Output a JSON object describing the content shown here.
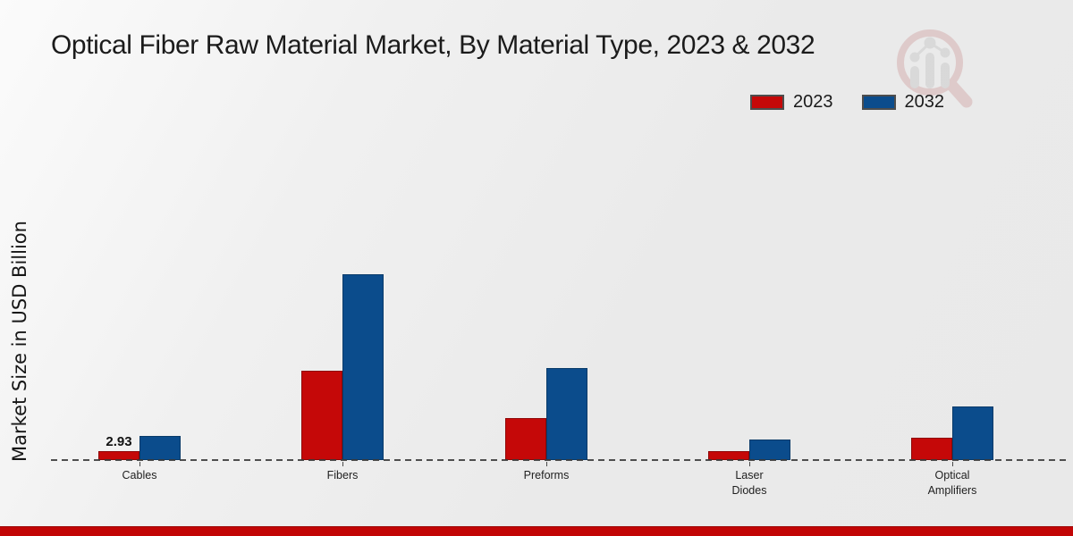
{
  "title": "Optical Fiber Raw Material Market, By Material Type, 2023 & 2032",
  "y_axis_label": "Market Size in USD Billion",
  "watermark_icon": "magnifier-bar-chart-logo",
  "footer": {
    "accent_color": "#c20505"
  },
  "chart_data": {
    "type": "bar",
    "title": "Optical Fiber Raw Material Market, By Material Type, 2023 & 2032",
    "xlabel": "",
    "ylabel": "Market Size in USD Billion",
    "categories": [
      "Cables",
      "Fibers",
      "Preforms",
      "Laser Diodes",
      "Optical Amplifiers"
    ],
    "tick_labels": [
      "Cables",
      "Fibers",
      "Preforms",
      "Laser\nDiodes",
      "Optical\nAmplifiers"
    ],
    "series": [
      {
        "name": "2023",
        "color": "#c50808",
        "border": "#8f0606",
        "values": [
          2.93,
          28.4,
          13.3,
          2.8,
          7.1
        ]
      },
      {
        "name": "2032",
        "color": "#0b4c8c",
        "border": "#083a69",
        "values": [
          7.6,
          59.0,
          29.2,
          6.5,
          17.0
        ]
      }
    ],
    "data_labels": [
      {
        "category": "Cables",
        "series": "2023",
        "text": "2.93"
      }
    ],
    "ylim": [
      0,
      62
    ],
    "grid": false,
    "legend_position": "top-right",
    "baseline_style": "dashed"
  }
}
